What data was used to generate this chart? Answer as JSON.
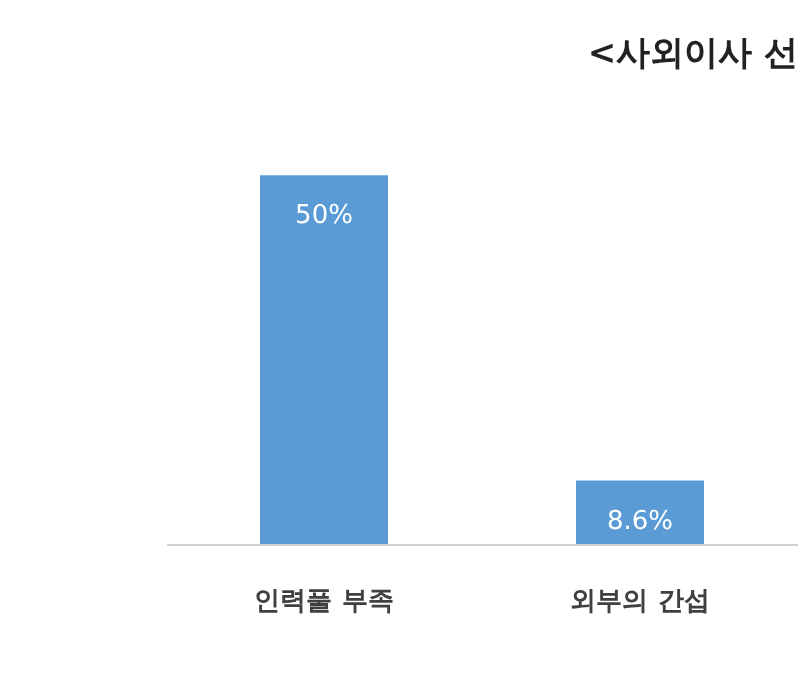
{
  "chart_data": {
    "type": "bar",
    "title": "<사외이사 선",
    "categories": [
      "인력풀 부족",
      "외부의 간섭"
    ],
    "values": [
      50,
      8.6
    ],
    "value_labels": [
      "50%",
      "8.6%"
    ],
    "color": "#5b9bd5",
    "tick_labels": "x"
  }
}
